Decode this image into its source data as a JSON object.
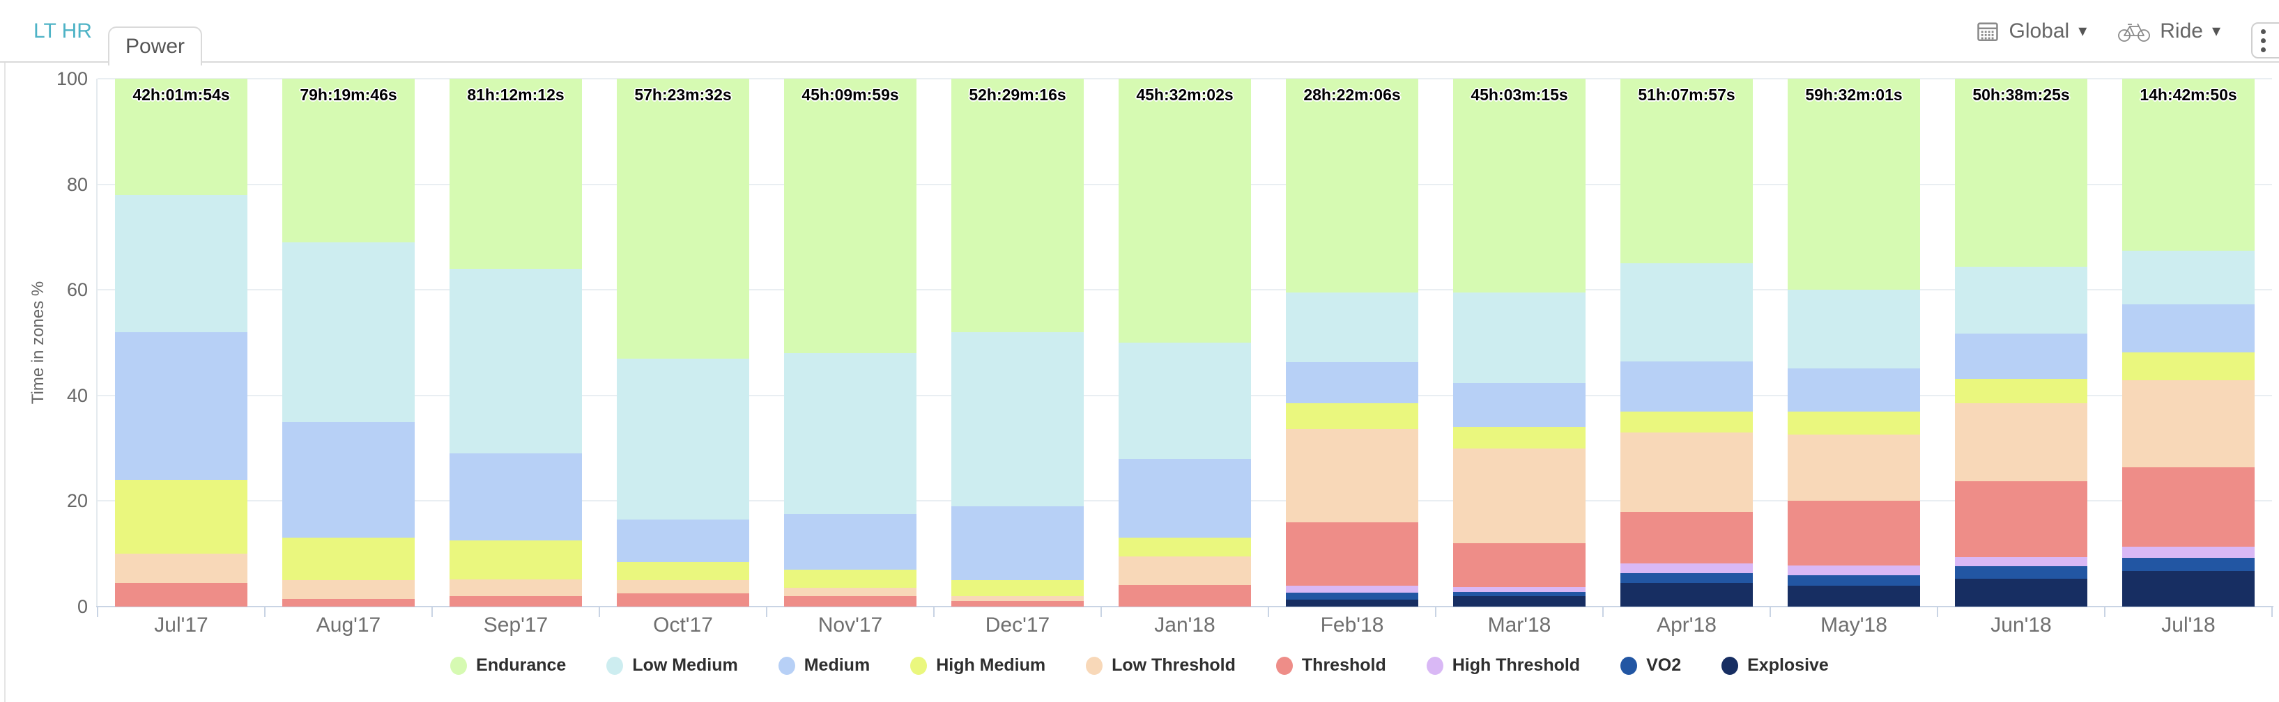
{
  "header": {
    "tabs": [
      {
        "label": "LT HR",
        "active": false
      },
      {
        "label": "Power",
        "active": true
      }
    ],
    "controls": {
      "grouping": {
        "label": "Global",
        "icon": "calendar-icon"
      },
      "sport": {
        "label": "Ride",
        "icon": "bike-icon"
      },
      "menu": {
        "icon": "kebab-menu-icon"
      }
    }
  },
  "colors": {
    "tab_link": "#4eb3c6",
    "tab_active_text": "#555555",
    "axis_text": "#666666",
    "x_label_text": "#6f6f6f",
    "gridline": "#e9eef2",
    "axis_line": "#c9d4e4",
    "legend_text": "#2e2e2e"
  },
  "chart_data": {
    "type": "bar",
    "stacked": true,
    "title": "",
    "xlabel": "",
    "ylabel": "Time in zones %",
    "ylim": [
      0,
      100
    ],
    "yticks": [
      0,
      20,
      40,
      60,
      80,
      100
    ],
    "grid": true,
    "legend_position": "bottom",
    "categories": [
      "Jul'17",
      "Aug'17",
      "Sep'17",
      "Oct'17",
      "Nov'17",
      "Dec'17",
      "Jan'18",
      "Feb'18",
      "Mar'18",
      "Apr'18",
      "May'18",
      "Jun'18",
      "Jul'18"
    ],
    "bar_total_labels": [
      "42h:01m:54s",
      "79h:19m:46s",
      "81h:12m:12s",
      "57h:23m:32s",
      "45h:09m:59s",
      "52h:29m:16s",
      "45h:32m:02s",
      "28h:22m:06s",
      "45h:03m:15s",
      "51h:07m:57s",
      "59h:32m:01s",
      "50h:38m:25s",
      "14h:42m:50s"
    ],
    "series": [
      {
        "name": "Explosive",
        "color": "#172e62",
        "values": [
          0,
          0,
          0,
          0,
          0,
          0,
          0,
          1.3,
          2,
          4.5,
          3.9,
          5.3,
          6.7
        ]
      },
      {
        "name": "VO2",
        "color": "#2256a3",
        "values": [
          0,
          0,
          0,
          0,
          0,
          0,
          0,
          1.3,
          0.8,
          1.8,
          2,
          2.4,
          2.6
        ]
      },
      {
        "name": "High Threshold",
        "color": "#d9b8f5",
        "values": [
          0,
          0,
          0,
          0,
          0,
          0,
          0,
          1.4,
          0.9,
          1.9,
          1.9,
          1.7,
          2
        ]
      },
      {
        "name": "Threshold",
        "color": "#ee8d88",
        "values": [
          4.5,
          1.5,
          2,
          2.5,
          2,
          1,
          4.1,
          12,
          8.3,
          9.8,
          12.2,
          14.4,
          15.1
        ]
      },
      {
        "name": "Low Threshold",
        "color": "#f8d8b8",
        "values": [
          5.5,
          3.5,
          3.2,
          2.5,
          1.5,
          1,
          5.4,
          17.6,
          18,
          15,
          12.6,
          14.7,
          16.5
        ]
      },
      {
        "name": "High Medium",
        "color": "#eaf77e",
        "values": [
          14,
          8,
          7.3,
          3.5,
          3.5,
          3,
          3.5,
          4.9,
          4,
          4,
          4.3,
          4.7,
          5.3
        ]
      },
      {
        "name": "Medium",
        "color": "#b7d0f6",
        "values": [
          28,
          22,
          16.5,
          8,
          10.5,
          14,
          15,
          7.8,
          8.3,
          9.5,
          8.2,
          8.5,
          9.1
        ]
      },
      {
        "name": "Low Medium",
        "color": "#cdedf0",
        "values": [
          26,
          34,
          35,
          30.5,
          30.5,
          33,
          22,
          13.2,
          17.2,
          18.5,
          14.9,
          12.7,
          10.1
        ]
      },
      {
        "name": "Endurance",
        "color": "#d6fab2",
        "values": [
          22,
          31,
          36,
          53,
          52,
          48,
          50,
          40.5,
          40.5,
          35,
          40,
          35.6,
          32.6
        ]
      }
    ],
    "legend_order_note": "legend displays series reversed (top of stack first)"
  }
}
